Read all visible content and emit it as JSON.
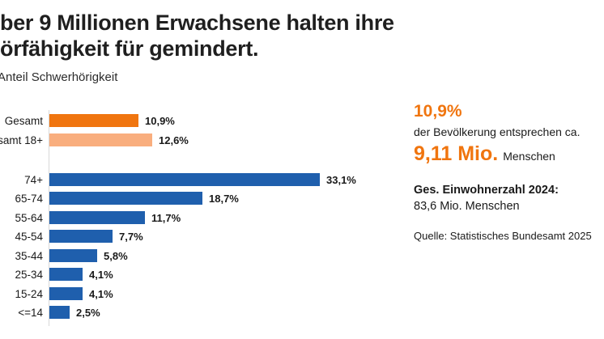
{
  "title": "ber 9 Millionen Erwachsene halten ihre\nörfähigkeit für gemindert.",
  "chart_data": {
    "type": "bar",
    "orientation": "horizontal",
    "title": "Anteil Schwerhörigkeit",
    "categories": [
      "Gesamt",
      "samt 18+",
      "74+",
      "65-74",
      "55-64",
      "45-54",
      "35-44",
      "25-34",
      "15-24",
      "<=14"
    ],
    "values": [
      10.9,
      12.6,
      33.1,
      18.7,
      11.7,
      7.7,
      5.8,
      4.1,
      4.1,
      2.5
    ],
    "value_labels": [
      "10,9%",
      "12,6%",
      "33,1%",
      "18,7%",
      "11,7%",
      "7,7%",
      "5,8%",
      "4,1%",
      "4,1%",
      "2,5%"
    ],
    "bar_colors": [
      "#F0750F",
      "#F9AE7E",
      "#1F5FAD",
      "#1F5FAD",
      "#1F5FAD",
      "#1F5FAD",
      "#1F5FAD",
      "#1F5FAD",
      "#1F5FAD",
      "#1F5FAD"
    ],
    "group_gap_after_index": 1,
    "xlim": [
      0,
      35
    ],
    "grid": false,
    "legend": false
  },
  "callout": {
    "percent": "10,9%",
    "description": "der Bevölkerung entsprechen ca.",
    "big_value": "9,11 Mio.",
    "big_unit": "Menschen",
    "population_label": "Ges. Einwohnerzahl 2024:",
    "population_value": "83,6 Mio. Menschen",
    "source": "Quelle: Statistisches Bundesamt 2025"
  },
  "colors": {
    "orange": "#F0750F",
    "light_orange": "#F9AE7E",
    "blue": "#1F5FAD",
    "text": "#1A1A1A",
    "axis_line": "#D9D9D9"
  }
}
